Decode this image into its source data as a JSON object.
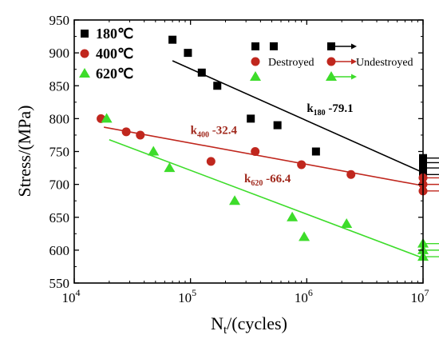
{
  "chart_data": {
    "type": "scatter",
    "xscale": "log",
    "xlim": [
      10000,
      10000000
    ],
    "ylim": [
      550,
      950
    ],
    "yticks": [
      550,
      600,
      650,
      700,
      750,
      800,
      850,
      900,
      950
    ],
    "xticks": [
      {
        "value": 10000,
        "base": "10",
        "exp": "4"
      },
      {
        "value": 100000,
        "base": "10",
        "exp": "5"
      },
      {
        "value": 1000000,
        "base": "10",
        "exp": "6"
      },
      {
        "value": 10000000,
        "base": "10",
        "exp": "7"
      }
    ],
    "xlabel": {
      "main": "N",
      "sub": "t",
      "rest": "/(cycles)"
    },
    "ylabel": "Stress/(MPa)",
    "legend": [
      {
        "label": "180℃",
        "marker": "square",
        "color": "#000000"
      },
      {
        "label": "400℃",
        "marker": "circle",
        "color": "#c0271e"
      },
      {
        "label": "620℃",
        "marker": "triangle",
        "color": "#3ddc2a"
      }
    ],
    "status_legend": {
      "destroyed": "Destroyed",
      "undestroyed": "Undestroyed"
    },
    "series": [
      {
        "name": "180℃",
        "marker": "square",
        "color": "#000000",
        "destroyed": [
          [
            70000,
            920
          ],
          [
            95000,
            900
          ],
          [
            125000,
            870
          ],
          [
            170000,
            850
          ],
          [
            330000,
            800
          ],
          [
            560000,
            790
          ],
          [
            520000,
            910
          ],
          [
            1200000,
            750
          ]
        ],
        "undestroyed": [
          [
            10000000,
            740
          ],
          [
            10000000,
            733
          ],
          [
            10000000,
            725
          ],
          [
            10000000,
            715
          ]
        ],
        "fit": [
          [
            70000,
            888
          ],
          [
            10000000,
            718
          ]
        ]
      },
      {
        "name": "400℃",
        "marker": "circle",
        "color": "#c0271e",
        "destroyed": [
          [
            17000,
            800
          ],
          [
            28000,
            780
          ],
          [
            37000,
            775
          ],
          [
            150000,
            735
          ],
          [
            360000,
            750
          ],
          [
            900000,
            730
          ],
          [
            2400000,
            715
          ]
        ],
        "undestroyed": [
          [
            10000000,
            710
          ],
          [
            10000000,
            700
          ],
          [
            10000000,
            690
          ]
        ],
        "fit": [
          [
            18000,
            787
          ],
          [
            10000000,
            698
          ]
        ]
      },
      {
        "name": "620℃",
        "marker": "triangle",
        "color": "#3ddc2a",
        "destroyed": [
          [
            19000,
            800
          ],
          [
            48000,
            750
          ],
          [
            66000,
            725
          ],
          [
            240000,
            675
          ],
          [
            750000,
            650
          ],
          [
            950000,
            620
          ],
          [
            2200000,
            640
          ]
        ],
        "undestroyed": [
          [
            10000000,
            610
          ],
          [
            10000000,
            600
          ],
          [
            10000000,
            590
          ]
        ],
        "fit": [
          [
            20000,
            768
          ],
          [
            10000000,
            588
          ]
        ]
      }
    ],
    "annotations": [
      {
        "k": "k",
        "sub": "180",
        "value": " -79.1",
        "color": "#000000",
        "x": 1000000,
        "y": 810
      },
      {
        "k": "k",
        "sub": "400",
        "value": " -32.4",
        "color": "#a0281c",
        "x": 100000,
        "y": 777
      },
      {
        "k": "k",
        "sub": "620",
        "value": " -66.4",
        "color": "#a0281c",
        "x": 290000,
        "y": 703
      }
    ]
  }
}
